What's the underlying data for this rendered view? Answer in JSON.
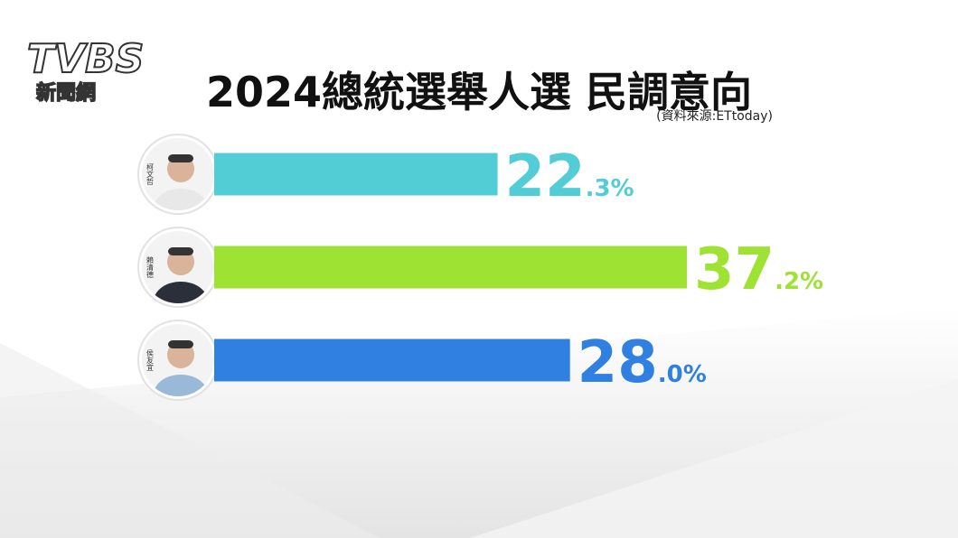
{
  "logo": {
    "brand": "TVBS",
    "sub": "新聞網"
  },
  "chart_data": {
    "type": "bar",
    "orientation": "horizontal",
    "title": "2024總統選舉人選 民調意向",
    "subtitle": "(資料來源:ETtoday)",
    "categories": [
      "柯文哲",
      "賴清德",
      "侯友宜"
    ],
    "values": [
      22.3,
      37.2,
      28.0
    ],
    "value_labels": [
      "22.3%",
      "37.2%",
      "28.0%"
    ],
    "colors": [
      "#52cdd6",
      "#9ee234",
      "#2f80e0"
    ]
  }
}
